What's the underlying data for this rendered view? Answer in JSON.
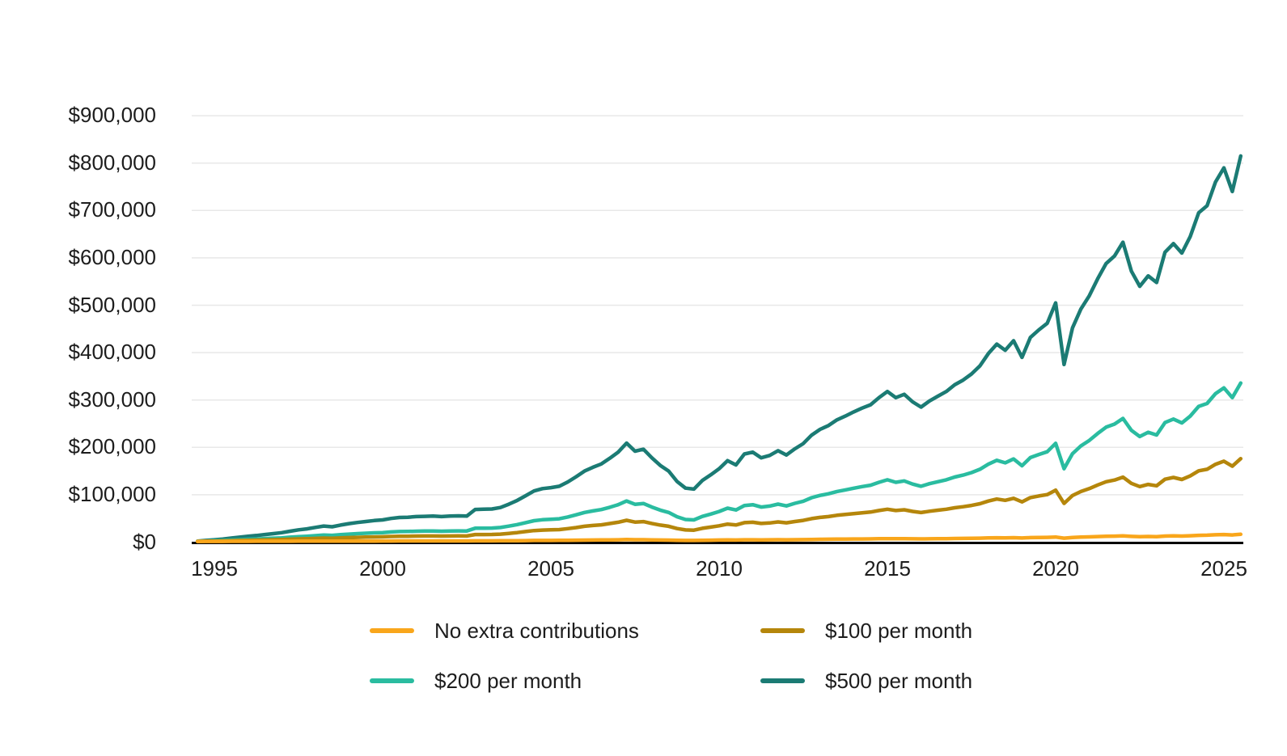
{
  "page": {
    "background": "#ffffff",
    "text_color": "#1d1d1d"
  },
  "chart_data": {
    "type": "line",
    "title": "",
    "xlabel": "",
    "ylabel": "",
    "unit": "USD",
    "values_scale": 1000,
    "xlim": [
      1994.3,
      2025.6
    ],
    "ylim": [
      0,
      900000
    ],
    "grid": "horizontal",
    "legend_position": "bottom",
    "style": {
      "grid_color": "#e8e8e8",
      "zero_line_color": "#000000",
      "line_width": 4.5
    },
    "ytick_values": [
      0,
      100000,
      200000,
      300000,
      400000,
      500000,
      600000,
      700000,
      800000,
      900000
    ],
    "ytick_labels": [
      "$0",
      "$100,000",
      "$200,000",
      "$300,000",
      "$400,000",
      "$500,000",
      "$600,000",
      "$700,000",
      "$800,000",
      "$900,000"
    ],
    "xticks": [
      1995,
      2000,
      2005,
      2010,
      2015,
      2020,
      2025
    ],
    "x": [
      1994.5,
      1994.75,
      1995,
      1995.25,
      1995.5,
      1995.75,
      1996,
      1996.25,
      1996.5,
      1996.75,
      1997,
      1997.25,
      1997.5,
      1997.75,
      1998,
      1998.25,
      1998.5,
      1998.75,
      1999,
      1999.25,
      1999.5,
      1999.75,
      2000,
      2000.25,
      2000.5,
      2000.75,
      2001,
      2001.25,
      2001.5,
      2001.75,
      2002,
      2002.25,
      2002.5,
      2002.75,
      2003,
      2003.25,
      2003.5,
      2003.75,
      2004,
      2004.25,
      2004.5,
      2004.75,
      2005,
      2005.25,
      2005.5,
      2005.75,
      2006,
      2006.25,
      2006.5,
      2006.75,
      2007,
      2007.25,
      2007.5,
      2007.75,
      2008,
      2008.25,
      2008.5,
      2008.75,
      2009,
      2009.25,
      2009.5,
      2009.75,
      2010,
      2010.25,
      2010.5,
      2010.75,
      2011,
      2011.25,
      2011.5,
      2011.75,
      2012,
      2012.25,
      2012.5,
      2012.75,
      2013,
      2013.25,
      2013.5,
      2013.75,
      2014,
      2014.25,
      2014.5,
      2014.75,
      2015,
      2015.25,
      2015.5,
      2015.75,
      2016,
      2016.25,
      2016.5,
      2016.75,
      2017,
      2017.25,
      2017.5,
      2017.75,
      2018,
      2018.25,
      2018.5,
      2018.75,
      2019,
      2019.25,
      2019.5,
      2019.75,
      2020,
      2020.25,
      2020.5,
      2020.75,
      2021,
      2021.25,
      2021.5,
      2021.75,
      2022,
      2022.25,
      2022.5,
      2022.75,
      2023,
      2023.25,
      2023.5,
      2023.75,
      2024,
      2024.25,
      2024.5,
      2024.75,
      2025,
      2025.25,
      2025.5
    ],
    "series": [
      {
        "id": "no-extra",
        "name": "No extra contributions",
        "color": "#f9a61b",
        "values_in_thousands": [
          1.5,
          1.6,
          1.6,
          1.6,
          1.7,
          1.7,
          1.7,
          1.8,
          1.8,
          1.8,
          1.9,
          1.9,
          2.0,
          2.0,
          2.1,
          2.1,
          2.1,
          2.2,
          2.2,
          2.3,
          2.3,
          2.3,
          2.4,
          2.4,
          2.5,
          2.5,
          2.5,
          2.5,
          2.5,
          2.5,
          2.5,
          2.5,
          2.5,
          2.8,
          2.8,
          2.8,
          2.9,
          3.0,
          3.1,
          3.3,
          3.5,
          3.6,
          3.6,
          3.7,
          3.8,
          4.1,
          4.3,
          4.4,
          4.6,
          4.8,
          5.0,
          5.4,
          5.1,
          5.1,
          4.8,
          4.5,
          4.3,
          3.9,
          3.6,
          3.6,
          3.9,
          4.1,
          4.4,
          4.7,
          4.5,
          4.9,
          5.0,
          4.8,
          4.9,
          5.1,
          4.9,
          5.1,
          5.3,
          5.7,
          5.9,
          6.1,
          6.3,
          6.4,
          6.6,
          6.7,
          6.9,
          7.1,
          7.4,
          7.1,
          7.3,
          7.0,
          6.8,
          7.0,
          7.2,
          7.4,
          7.6,
          7.8,
          8.1,
          8.4,
          8.9,
          9.2,
          9.0,
          9.4,
          8.7,
          9.5,
          9.8,
          10.0,
          10.8,
          8.4,
          9.9,
          10.6,
          11.1,
          11.8,
          12.4,
          12.7,
          13.2,
          12.1,
          11.5,
          11.9,
          11.6,
          12.8,
          13.2,
          12.8,
          13.4,
          14.4,
          14.6,
          15.6,
          16.1,
          15.2,
          16.6
        ]
      },
      {
        "id": "per-100",
        "name": "$100 per month",
        "color": "#b5860b",
        "values_in_thousands": [
          1.6,
          2.0,
          2.3,
          2.6,
          3.0,
          3.5,
          3.9,
          4.2,
          4.6,
          5.1,
          5.5,
          6.1,
          6.8,
          7.2,
          7.9,
          8.5,
          8.2,
          8.9,
          9.6,
          10.1,
          10.5,
          11.0,
          11.3,
          11.9,
          12.4,
          12.5,
          12.8,
          12.9,
          13.0,
          12.8,
          13.0,
          13.1,
          13.0,
          16.0,
          16.1,
          16.2,
          16.9,
          18.4,
          20.1,
          22.3,
          24.4,
          25.5,
          25.9,
          26.5,
          28.5,
          30.8,
          33.4,
          35.1,
          36.6,
          39.2,
          42.0,
          46.1,
          42.4,
          43.3,
          39.4,
          36.0,
          33.4,
          28.7,
          25.7,
          25.3,
          29.1,
          31.7,
          34.5,
          38.1,
          36.2,
          41.2,
          42.0,
          39.4,
          40.5,
          42.7,
          40.7,
          43.5,
          45.9,
          49.7,
          52.3,
          54.0,
          56.6,
          58.3,
          60.3,
          62.0,
          63.5,
          66.7,
          69.5,
          66.7,
          68.2,
          64.8,
          62.4,
          65.2,
          67.4,
          69.5,
          72.5,
          74.7,
          77.5,
          81.1,
          86.7,
          91.0,
          88.2,
          92.5,
          85.0,
          94.0,
          97.4,
          100.4,
          109.7,
          81.8,
          98.3,
          106.9,
          112.9,
          120.6,
          127.5,
          131.0,
          137.2,
          124.1,
          117.2,
          121.9,
          118.9,
          132.7,
          136.5,
          132.2,
          139.7,
          150.5,
          153.7,
          164.4,
          170.9,
          160.2,
          176.3
        ]
      },
      {
        "id": "per-200",
        "name": "$200 per month",
        "color": "#2abca0",
        "values_in_thousands": [
          1.7,
          2.3,
          3.0,
          3.6,
          4.4,
          5.2,
          6.0,
          6.7,
          7.5,
          8.3,
          9.1,
          10.4,
          11.6,
          12.4,
          13.6,
          14.9,
          14.3,
          15.7,
          16.9,
          18.0,
          18.8,
          19.6,
          20.2,
          21.5,
          22.3,
          22.5,
          23.1,
          23.3,
          23.5,
          23.1,
          23.5,
          23.7,
          23.5,
          29.3,
          29.5,
          29.7,
          30.9,
          33.8,
          37.1,
          41.2,
          45.3,
          47.3,
          48.2,
          49.4,
          53.1,
          57.6,
          62.6,
          65.8,
          68.7,
          73.6,
          79.0,
          86.8,
          79.8,
          81.5,
          74.1,
          67.5,
          62.6,
          53.5,
          47.8,
          46.9,
          54.3,
          59.3,
          64.6,
          71.6,
          67.9,
          77.3,
          79.0,
          74.1,
          76.1,
          80.2,
          76.5,
          81.9,
          86.4,
          93.8,
          98.7,
          102.0,
          106.9,
          110.2,
          113.9,
          117.2,
          120.1,
          126.3,
          131.6,
          126.3,
          129.1,
          122.6,
          118.0,
          123.4,
          127.5,
          131.6,
          137.4,
          141.5,
          146.8,
          153.8,
          164.5,
          172.7,
          167.4,
          175.6,
          161.2,
          178.5,
          185.0,
          190.8,
          208.5,
          155.0,
          186.7,
          203.1,
          214.6,
          229.4,
          242.6,
          249.1,
          261.1,
          236.0,
          222.8,
          231.9,
          226.1,
          252.4,
          259.8,
          251.6,
          266.0,
          286.5,
          292.7,
          313.3,
          325.6,
          305.0,
          335.9
        ]
      },
      {
        "id": "per-500",
        "name": "$500 per month",
        "color": "#1b7b74",
        "values_in_thousands": [
          2,
          3.5,
          5,
          6.5,
          8.5,
          10.5,
          12.5,
          14,
          16,
          18,
          20,
          23,
          26,
          28,
          31,
          34,
          32.5,
          36,
          39,
          41.5,
          43.5,
          45.5,
          47,
          50,
          52,
          52.5,
          54,
          54.5,
          55,
          54,
          55,
          55.5,
          55,
          69,
          69.5,
          70,
          73,
          80,
          88,
          98,
          108,
          113,
          115,
          118,
          127,
          138,
          150,
          158,
          165,
          177,
          190,
          209,
          192,
          196,
          178,
          162,
          150,
          128,
          114,
          112,
          130,
          142,
          155,
          172,
          163,
          186,
          190,
          178,
          183,
          193,
          184,
          197,
          208,
          226,
          238,
          246,
          258,
          266,
          275,
          283,
          290,
          305,
          318,
          305,
          312,
          296,
          285,
          298,
          308,
          318,
          332,
          342,
          355,
          372,
          398,
          418,
          405,
          425,
          390,
          432,
          448,
          462,
          505,
          375,
          452,
          492,
          520,
          556,
          588,
          604,
          633,
          572,
          540,
          562,
          548,
          612,
          630,
          610,
          645,
          695,
          710,
          760,
          790,
          740,
          815
        ]
      }
    ],
    "legend": [
      {
        "label": "No extra contributions",
        "color": "#f9a61b"
      },
      {
        "label": "$100 per month",
        "color": "#b5860b"
      },
      {
        "label": "$200 per month",
        "color": "#2abca0"
      },
      {
        "label": "$500 per month",
        "color": "#1b7b74"
      }
    ]
  }
}
